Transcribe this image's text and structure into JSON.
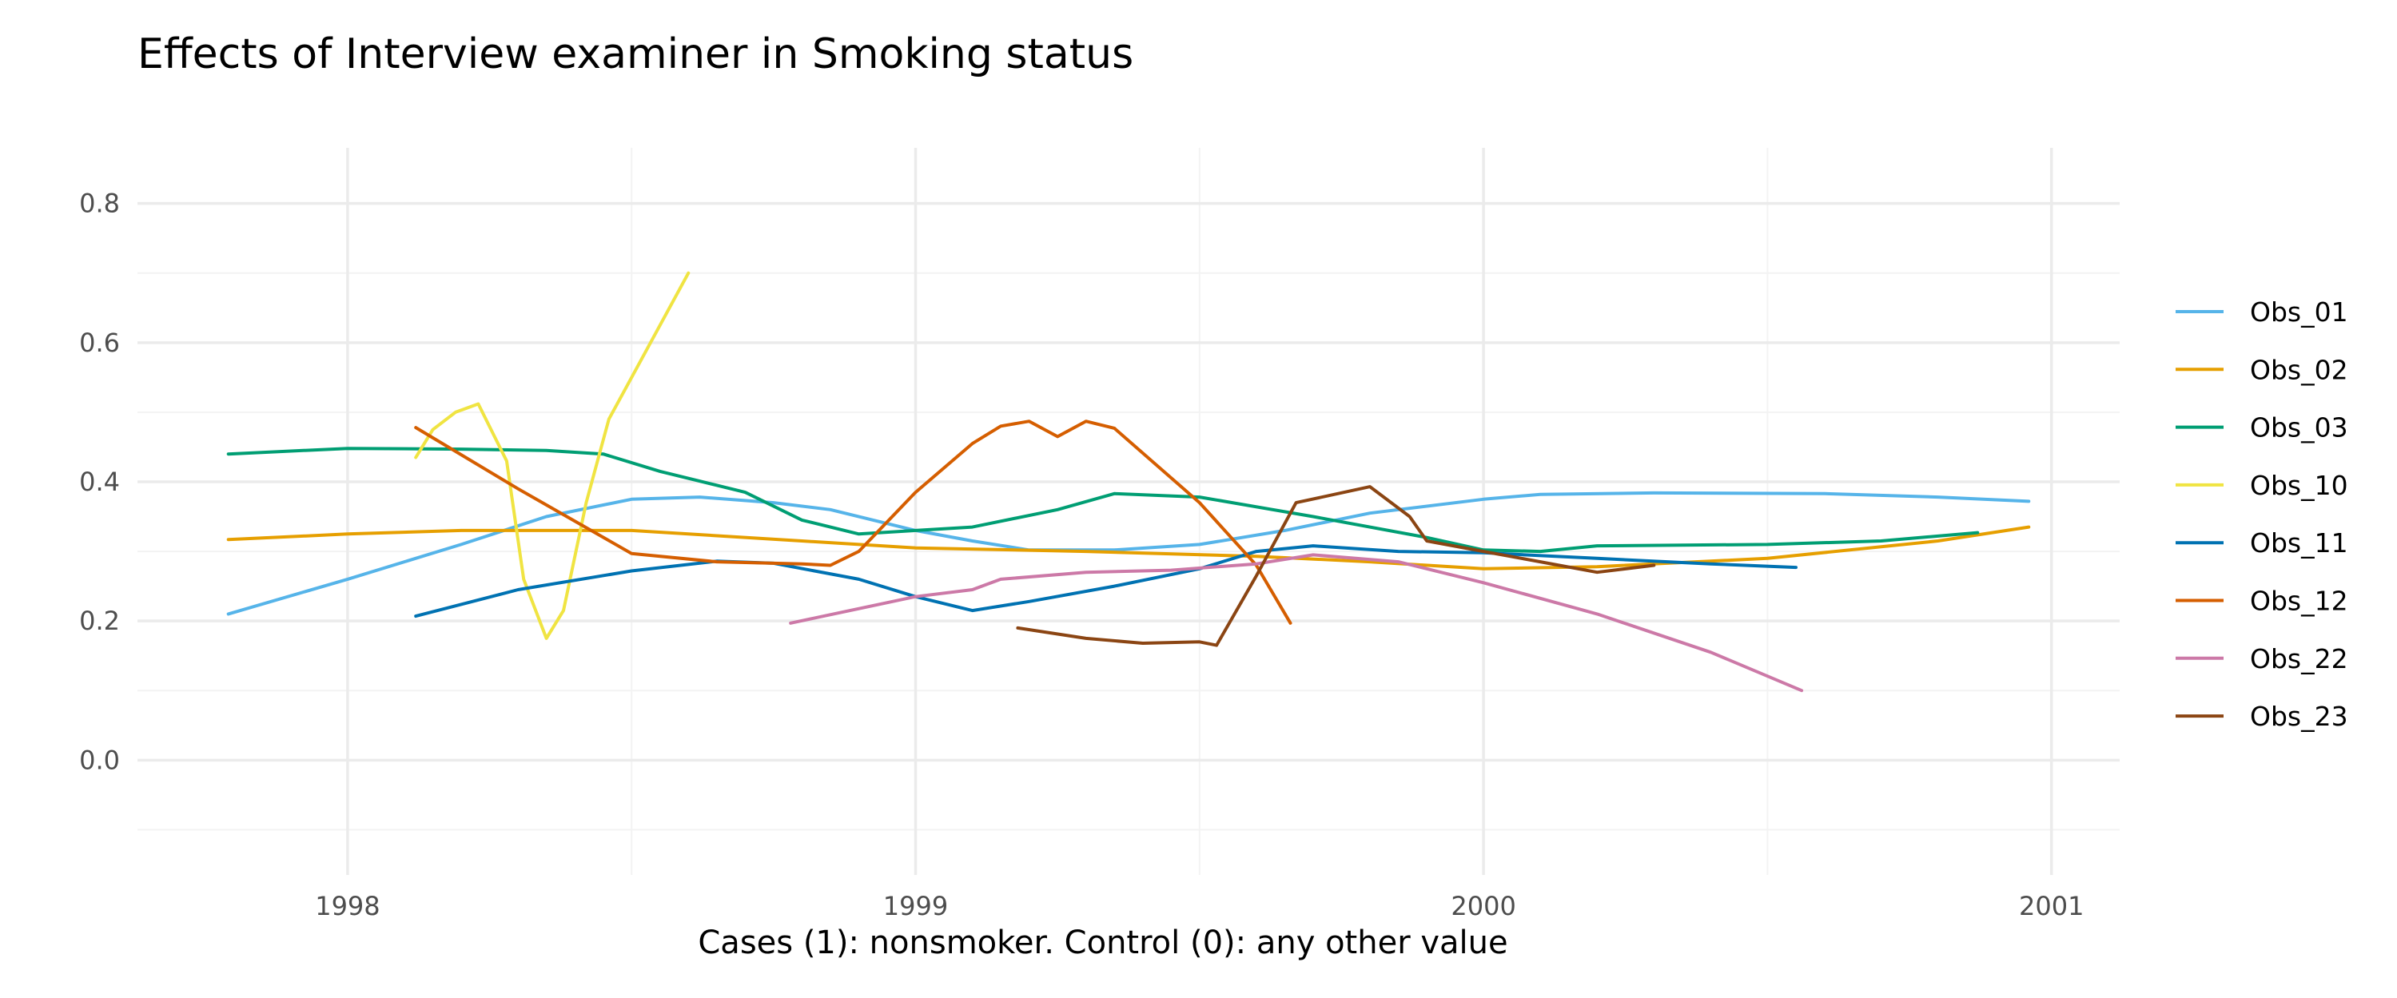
{
  "chart_data": {
    "type": "line",
    "title": "Effects of Interview examiner in Smoking status",
    "xlabel": "Cases (1): nonsmoker. Control (0): any other value",
    "ylabel": "",
    "xlim": [
      1997.63,
      2001.12
    ],
    "ylim": [
      -0.165,
      0.88
    ],
    "x_ticks": [
      1998,
      1999,
      2000,
      2001
    ],
    "x_tick_labels": [
      "1998",
      "1999",
      "2000",
      "2001"
    ],
    "y_ticks": [
      0.0,
      0.2,
      0.4,
      0.6,
      0.8
    ],
    "y_tick_labels": [
      "0.0",
      "0.2",
      "0.4",
      "0.6",
      "0.8"
    ],
    "grid": true,
    "legend_position": "right",
    "series": [
      {
        "name": "Obs_01",
        "color": "#56B4E9",
        "points": [
          [
            1997.79,
            0.21
          ],
          [
            1998.0,
            0.26
          ],
          [
            1998.2,
            0.31
          ],
          [
            1998.35,
            0.35
          ],
          [
            1998.5,
            0.375
          ],
          [
            1998.62,
            0.378
          ],
          [
            1998.75,
            0.37
          ],
          [
            1998.85,
            0.36
          ],
          [
            1999.0,
            0.33
          ],
          [
            1999.1,
            0.315
          ],
          [
            1999.2,
            0.302
          ],
          [
            1999.35,
            0.302
          ],
          [
            1999.5,
            0.31
          ],
          [
            1999.65,
            0.33
          ],
          [
            1999.8,
            0.355
          ],
          [
            2000.0,
            0.375
          ],
          [
            2000.1,
            0.382
          ],
          [
            2000.3,
            0.384
          ],
          [
            2000.6,
            0.383
          ],
          [
            2000.8,
            0.378
          ],
          [
            2000.96,
            0.372
          ]
        ]
      },
      {
        "name": "Obs_02",
        "color": "#E69F00",
        "points": [
          [
            1997.79,
            0.317
          ],
          [
            1998.0,
            0.325
          ],
          [
            1998.2,
            0.33
          ],
          [
            1998.5,
            0.33
          ],
          [
            1998.8,
            0.315
          ],
          [
            1999.0,
            0.305
          ],
          [
            1999.3,
            0.3
          ],
          [
            1999.6,
            0.293
          ],
          [
            1999.8,
            0.285
          ],
          [
            2000.0,
            0.275
          ],
          [
            2000.2,
            0.278
          ],
          [
            2000.5,
            0.29
          ],
          [
            2000.8,
            0.315
          ],
          [
            2000.96,
            0.335
          ]
        ]
      },
      {
        "name": "Obs_03",
        "color": "#009E73",
        "points": [
          [
            1997.79,
            0.44
          ],
          [
            1998.0,
            0.448
          ],
          [
            1998.2,
            0.447
          ],
          [
            1998.35,
            0.445
          ],
          [
            1998.45,
            0.44
          ],
          [
            1998.55,
            0.415
          ],
          [
            1998.7,
            0.385
          ],
          [
            1998.8,
            0.345
          ],
          [
            1998.9,
            0.325
          ],
          [
            1999.0,
            0.33
          ],
          [
            1999.1,
            0.335
          ],
          [
            1999.25,
            0.36
          ],
          [
            1999.35,
            0.383
          ],
          [
            1999.5,
            0.378
          ],
          [
            1999.7,
            0.35
          ],
          [
            1999.9,
            0.32
          ],
          [
            2000.0,
            0.302
          ],
          [
            2000.1,
            0.3
          ],
          [
            2000.2,
            0.308
          ],
          [
            2000.5,
            0.31
          ],
          [
            2000.7,
            0.315
          ],
          [
            2000.87,
            0.327
          ]
        ]
      },
      {
        "name": "Obs_10",
        "color": "#F0E442",
        "points": [
          [
            1998.12,
            0.435
          ],
          [
            1998.15,
            0.475
          ],
          [
            1998.19,
            0.5
          ],
          [
            1998.23,
            0.512
          ],
          [
            1998.28,
            0.43
          ],
          [
            1998.31,
            0.26
          ],
          [
            1998.35,
            0.175
          ],
          [
            1998.38,
            0.215
          ],
          [
            1998.42,
            0.37
          ],
          [
            1998.46,
            0.49
          ],
          [
            1998.5,
            0.55
          ],
          [
            1998.6,
            0.7
          ]
        ]
      },
      {
        "name": "Obs_11",
        "color": "#0072B2",
        "points": [
          [
            1998.12,
            0.207
          ],
          [
            1998.3,
            0.245
          ],
          [
            1998.5,
            0.272
          ],
          [
            1998.65,
            0.286
          ],
          [
            1998.75,
            0.283
          ],
          [
            1998.9,
            0.26
          ],
          [
            1999.0,
            0.235
          ],
          [
            1999.1,
            0.215
          ],
          [
            1999.2,
            0.228
          ],
          [
            1999.35,
            0.25
          ],
          [
            1999.5,
            0.275
          ],
          [
            1999.6,
            0.3
          ],
          [
            1999.7,
            0.308
          ],
          [
            1999.85,
            0.3
          ],
          [
            2000.0,
            0.298
          ],
          [
            2000.2,
            0.29
          ],
          [
            2000.4,
            0.282
          ],
          [
            2000.55,
            0.277
          ]
        ]
      },
      {
        "name": "Obs_12",
        "color": "#D55E00",
        "points": [
          [
            1998.12,
            0.478
          ],
          [
            1998.3,
            0.39
          ],
          [
            1998.5,
            0.297
          ],
          [
            1998.65,
            0.285
          ],
          [
            1998.8,
            0.282
          ],
          [
            1998.85,
            0.28
          ],
          [
            1998.9,
            0.3
          ],
          [
            1999.0,
            0.385
          ],
          [
            1999.1,
            0.455
          ],
          [
            1999.15,
            0.48
          ],
          [
            1999.2,
            0.487
          ],
          [
            1999.25,
            0.465
          ],
          [
            1999.3,
            0.487
          ],
          [
            1999.35,
            0.477
          ],
          [
            1999.5,
            0.37
          ],
          [
            1999.6,
            0.28
          ],
          [
            1999.66,
            0.197
          ]
        ]
      },
      {
        "name": "Obs_22",
        "color": "#CC79A7",
        "points": [
          [
            1998.78,
            0.197
          ],
          [
            1999.0,
            0.235
          ],
          [
            1999.1,
            0.245
          ],
          [
            1999.15,
            0.26
          ],
          [
            1999.3,
            0.27
          ],
          [
            1999.45,
            0.273
          ],
          [
            1999.6,
            0.282
          ],
          [
            1999.7,
            0.295
          ],
          [
            1999.85,
            0.285
          ],
          [
            2000.0,
            0.255
          ],
          [
            2000.2,
            0.21
          ],
          [
            2000.4,
            0.155
          ],
          [
            2000.56,
            0.1
          ]
        ]
      },
      {
        "name": "Obs_23",
        "color": "#8B4513",
        "points": [
          [
            1999.18,
            0.19
          ],
          [
            1999.3,
            0.175
          ],
          [
            1999.4,
            0.168
          ],
          [
            1999.5,
            0.17
          ],
          [
            1999.53,
            0.165
          ],
          [
            1999.6,
            0.265
          ],
          [
            1999.67,
            0.37
          ],
          [
            1999.8,
            0.393
          ],
          [
            1999.87,
            0.35
          ],
          [
            1999.9,
            0.315
          ],
          [
            2000.0,
            0.3
          ],
          [
            2000.1,
            0.285
          ],
          [
            2000.2,
            0.27
          ],
          [
            2000.3,
            0.28
          ]
        ]
      }
    ]
  }
}
